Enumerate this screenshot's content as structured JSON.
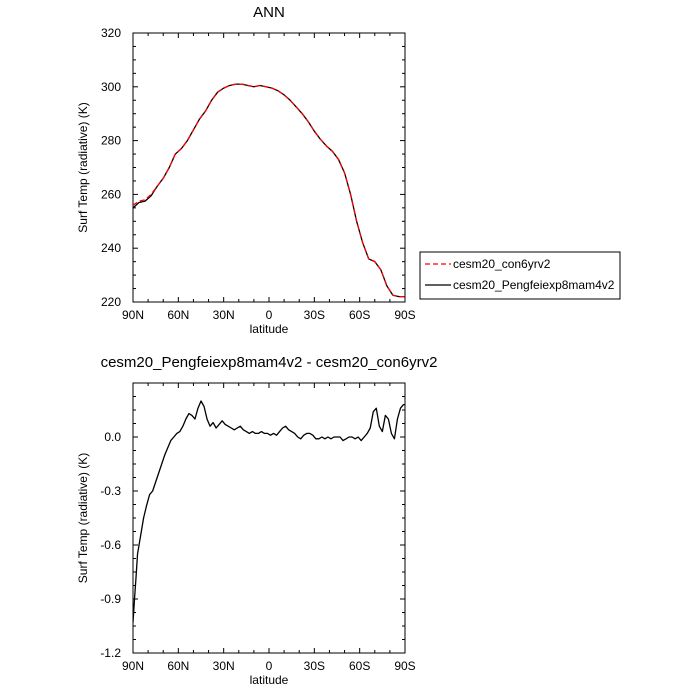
{
  "chart_data": [
    {
      "type": "line",
      "title": "ANN",
      "xlabel": "latitude",
      "ylabel": "Surf Temp (radiative) (K)",
      "xlim": [
        90,
        -90
      ],
      "ylim": [
        220,
        320
      ],
      "xticks": [
        90,
        60,
        30,
        0,
        -30,
        -60,
        -90
      ],
      "xtick_labels": [
        "90N",
        "60N",
        "30N",
        "0",
        "30S",
        "60S",
        "90S"
      ],
      "yticks": [
        220,
        240,
        260,
        280,
        300,
        320
      ],
      "ytick_labels": [
        "220",
        "240",
        "260",
        "280",
        "300",
        "320"
      ],
      "grid": false,
      "legend": "right",
      "series": [
        {
          "name": "cesm20_con6yrv2",
          "color": "#ff0000",
          "dash": "dashed",
          "x": [
            90,
            86,
            82,
            78,
            74,
            70,
            66,
            62,
            58,
            54,
            50,
            46,
            42,
            38,
            34,
            30,
            26,
            22,
            18,
            14,
            10,
            6,
            2,
            -2,
            -6,
            -10,
            -14,
            -18,
            -22,
            -26,
            -30,
            -34,
            -38,
            -42,
            -46,
            -50,
            -54,
            -58,
            -62,
            -66,
            -70,
            -74,
            -78,
            -82,
            -86,
            -90
          ],
          "values": [
            256,
            257.5,
            258,
            260,
            263,
            266,
            270,
            275,
            277,
            280,
            284,
            288,
            291,
            295,
            298,
            299.5,
            300.5,
            301,
            301,
            300.5,
            300,
            300.5,
            300,
            299.5,
            298.5,
            297,
            295,
            292.5,
            290,
            287,
            283.5,
            280.5,
            278,
            276,
            273,
            268,
            260,
            250,
            242,
            236,
            235,
            232,
            226,
            222.5,
            222,
            222
          ]
        },
        {
          "name": "cesm20_Pengfeiexp8mam4v2",
          "color": "#000000",
          "dash": "solid",
          "x": [
            90,
            86,
            82,
            78,
            74,
            70,
            66,
            62,
            58,
            54,
            50,
            46,
            42,
            38,
            34,
            30,
            26,
            22,
            18,
            14,
            10,
            6,
            2,
            -2,
            -6,
            -10,
            -14,
            -18,
            -22,
            -26,
            -30,
            -34,
            -38,
            -42,
            -46,
            -50,
            -54,
            -58,
            -62,
            -66,
            -70,
            -74,
            -78,
            -82,
            -86,
            -90
          ],
          "values": [
            255,
            257,
            257.5,
            259.5,
            263,
            266,
            270,
            275,
            277,
            280,
            284,
            288,
            291,
            295,
            298,
            299.5,
            300.5,
            301,
            301,
            300.5,
            300,
            300.5,
            300,
            299.5,
            298.5,
            297,
            295,
            292.5,
            290,
            287,
            283.5,
            280.5,
            278,
            276,
            273,
            268,
            260,
            250,
            242,
            236,
            235,
            232,
            226,
            222.5,
            222,
            222
          ]
        }
      ]
    },
    {
      "type": "line",
      "title": "cesm20_Pengfeiexp8mam4v2 - cesm20_con6yrv2",
      "xlabel": "latitude",
      "ylabel": "Surf Temp (radiative) (K)",
      "xlim": [
        90,
        -90
      ],
      "ylim": [
        -1.2,
        0.3
      ],
      "xticks": [
        90,
        60,
        30,
        0,
        -30,
        -60,
        -90
      ],
      "xtick_labels": [
        "90N",
        "60N",
        "30N",
        "0",
        "30S",
        "60S",
        "90S"
      ],
      "yticks": [
        -1.2,
        -0.9,
        -0.6,
        -0.3,
        0.0
      ],
      "ytick_labels": [
        "-1.2",
        "-0.9",
        "-0.6",
        "-0.3",
        "0.0"
      ],
      "grid": false,
      "series": [
        {
          "color": "#000000",
          "dash": "solid",
          "x": [
            90,
            89,
            88,
            87,
            85,
            83,
            81,
            79,
            77,
            75,
            73,
            71,
            69,
            67,
            65,
            63,
            61,
            59,
            57,
            55,
            53,
            51,
            49,
            47,
            45,
            43,
            41,
            39,
            37,
            35,
            33,
            31,
            29,
            27,
            25,
            23,
            21,
            19,
            17,
            15,
            13,
            11,
            9,
            7,
            5,
            3,
            1,
            -1,
            -3,
            -5,
            -7,
            -9,
            -11,
            -13,
            -15,
            -17,
            -19,
            -21,
            -23,
            -25,
            -27,
            -29,
            -31,
            -33,
            -35,
            -37,
            -39,
            -41,
            -43,
            -45,
            -47,
            -49,
            -51,
            -53,
            -55,
            -57,
            -59,
            -61,
            -63,
            -65,
            -67,
            -69,
            -71,
            -73,
            -75,
            -77,
            -79,
            -81,
            -83,
            -85,
            -87,
            -89,
            -90
          ],
          "values": [
            -1.03,
            -0.9,
            -0.78,
            -0.65,
            -0.55,
            -0.45,
            -0.38,
            -0.32,
            -0.3,
            -0.25,
            -0.2,
            -0.15,
            -0.1,
            -0.06,
            -0.02,
            0.0,
            0.02,
            0.03,
            0.06,
            0.1,
            0.13,
            0.12,
            0.1,
            0.16,
            0.2,
            0.17,
            0.1,
            0.06,
            0.08,
            0.05,
            0.07,
            0.09,
            0.07,
            0.06,
            0.05,
            0.04,
            0.05,
            0.06,
            0.04,
            0.03,
            0.02,
            0.03,
            0.02,
            0.02,
            0.03,
            0.02,
            0.02,
            0.01,
            0.02,
            0.01,
            0.03,
            0.05,
            0.06,
            0.04,
            0.03,
            0.02,
            0.0,
            -0.01,
            0.01,
            0.02,
            0.02,
            0.01,
            -0.01,
            -0.01,
            0.0,
            -0.01,
            0.0,
            -0.01,
            0.0,
            0.0,
            0.0,
            -0.02,
            -0.01,
            0.0,
            0.0,
            -0.01,
            0.0,
            -0.02,
            0.0,
            0.02,
            0.05,
            0.14,
            0.16,
            0.06,
            0.03,
            0.12,
            0.1,
            0.02,
            -0.01,
            0.1,
            0.16,
            0.18,
            0.18
          ]
        }
      ]
    }
  ]
}
